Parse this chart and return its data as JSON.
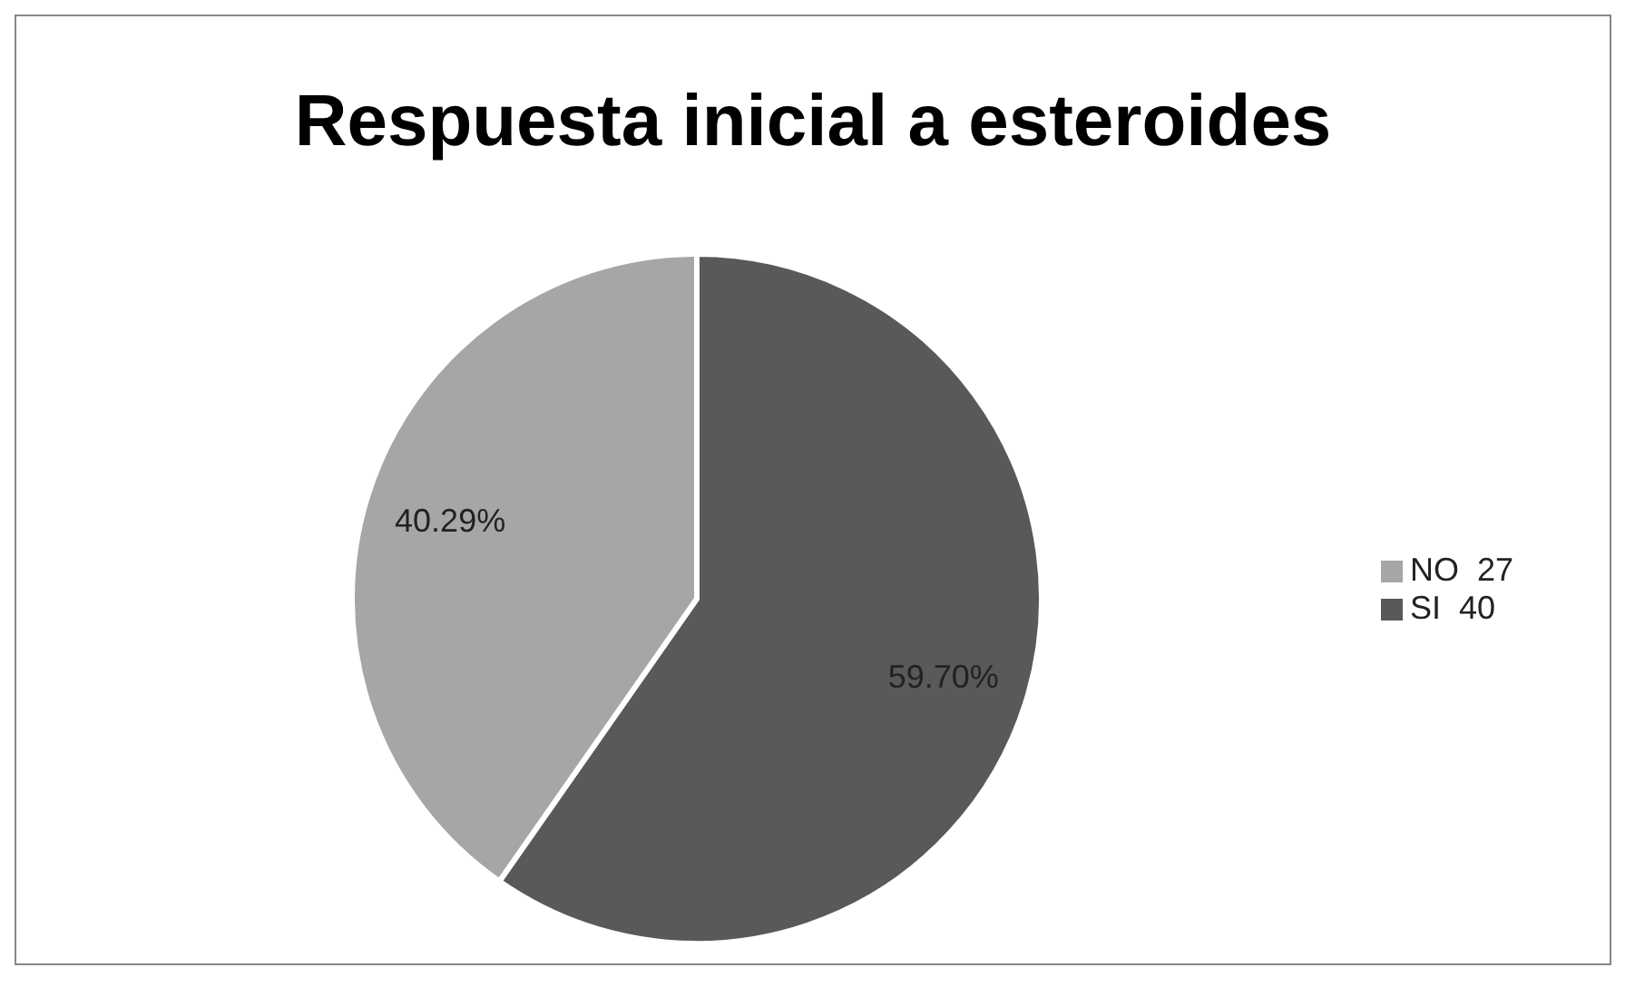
{
  "chart_data": {
    "type": "pie",
    "title": "Respuesta inicial a esteroides",
    "categories": [
      "SI  40",
      "NO  27"
    ],
    "values": [
      59.7,
      40.29
    ],
    "value_labels": [
      "59.70%",
      "40.29%"
    ],
    "colors": [
      "#595959",
      "#a6a6a6"
    ],
    "legend": "right"
  }
}
